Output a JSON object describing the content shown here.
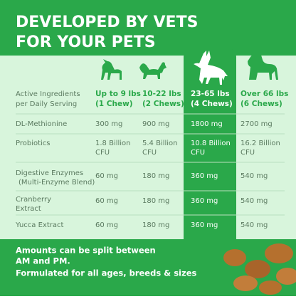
{
  "header": {
    "title_lines": [
      "DEVELOPED BY VETS",
      "FOR YOUR PETS"
    ]
  },
  "table": {
    "corner": [
      "Active Ingredients",
      "per Daily Serving"
    ],
    "columns": [
      [
        "Up to 9 lbs",
        "(1 Chew)"
      ],
      [
        "10-22 lbs",
        "(2 Chews)"
      ],
      [
        "23-65 lbs",
        "(4 Chews)"
      ],
      [
        "Over 66 lbs",
        "(6 Chews)"
      ]
    ],
    "rows": [
      {
        "label": [
          "DL-Methionine"
        ],
        "values": [
          [
            "300 mg"
          ],
          [
            "900 mg"
          ],
          [
            "1800 mg"
          ],
          [
            "2700 mg"
          ]
        ]
      },
      {
        "label": [
          "Probiotics"
        ],
        "values": [
          [
            "1.8 Billion",
            "CFU"
          ],
          [
            "5.4 Billion",
            "CFU"
          ],
          [
            "10.8 Billion",
            "CFU"
          ],
          [
            "16.2 Billion",
            "CFU"
          ]
        ]
      },
      {
        "label": [
          "Digestive Enzymes"
        ],
        "note": "(Multi-Enzyme Blend)",
        "values": [
          [
            "60 mg"
          ],
          [
            "180 mg"
          ],
          [
            "360 mg"
          ],
          [
            "540 mg"
          ]
        ]
      },
      {
        "label": [
          "Cranberry",
          "Extract"
        ],
        "values": [
          [
            "60 mg"
          ],
          [
            "180 mg"
          ],
          [
            "360 mg"
          ],
          [
            "540 mg"
          ]
        ]
      },
      {
        "label": [
          "Yucca Extract"
        ],
        "values": [
          [
            "60 mg"
          ],
          [
            "180 mg"
          ],
          [
            "360 mg"
          ],
          [
            "540 mg"
          ]
        ]
      }
    ]
  },
  "footer": {
    "lines": [
      "Amounts can be split between",
      "AM and PM.",
      "Formulated for all ages, breeds & sizes"
    ]
  }
}
